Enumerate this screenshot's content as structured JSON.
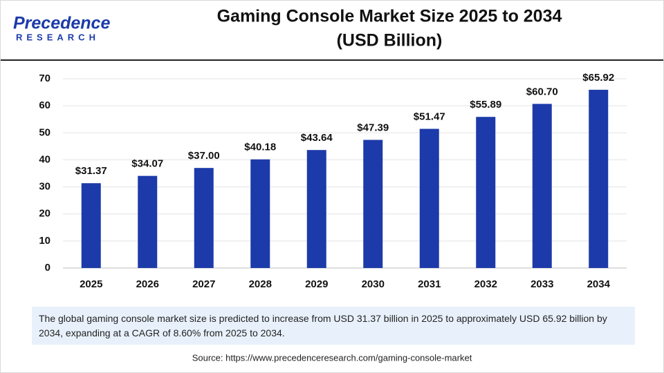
{
  "logo": {
    "name": "Precedence",
    "tagline": "RESEARCH"
  },
  "chart_data": {
    "type": "bar",
    "title": "Gaming Console Market Size 2025 to 2034",
    "subtitle": "(USD Billion)",
    "categories": [
      "2025",
      "2026",
      "2027",
      "2028",
      "2029",
      "2030",
      "2031",
      "2032",
      "2033",
      "2034"
    ],
    "values": [
      31.37,
      34.07,
      37.0,
      40.18,
      43.64,
      47.39,
      51.47,
      55.89,
      60.7,
      65.92
    ],
    "value_labels": [
      "$31.37",
      "$34.07",
      "$37.00",
      "$40.18",
      "$43.64",
      "$47.39",
      "$51.47",
      "$55.89",
      "$60.70",
      "$65.92"
    ],
    "color": "#1c3aa9",
    "ylim": [
      0,
      70
    ],
    "yticks": [
      0,
      10,
      20,
      30,
      40,
      50,
      60,
      70
    ],
    "grid": true
  },
  "description": "The global gaming console market size is predicted to increase from USD 31.37 billion in 2025 to approximately USD 65.92 billion by 2034, expanding at a CAGR of 8.60% from 2025 to 2034.",
  "source": "Source: https://www.precedenceresearch.com/gaming-console-market"
}
